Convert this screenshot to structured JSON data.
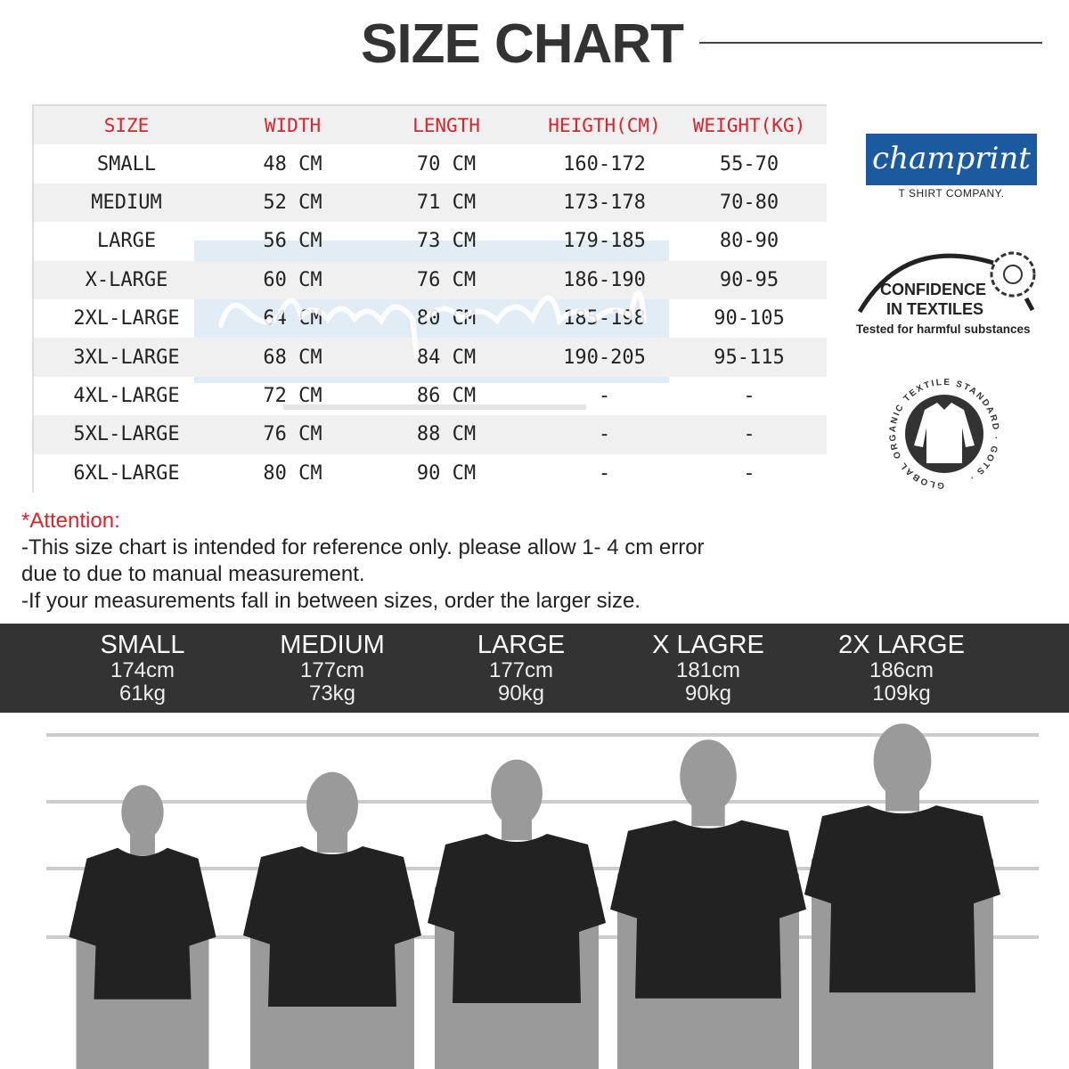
{
  "title": "SIZE CHART",
  "table": {
    "headers": [
      "SIZE",
      "WIDTH",
      "LENGTH",
      "HEIGTH(CM)",
      "WEIGHT(KG)"
    ],
    "rows": [
      [
        "SMALL",
        "48 CM",
        "70 CM",
        "160-172",
        "55-70"
      ],
      [
        "MEDIUM",
        "52 CM",
        "71 CM",
        "173-178",
        "70-80"
      ],
      [
        "LARGE",
        "56 CM",
        "73 CM",
        "179-185",
        "80-90"
      ],
      [
        "X-LARGE",
        "60 CM",
        "76 CM",
        "186-190",
        "90-95"
      ],
      [
        "2XL-LARGE",
        "64 CM",
        "80 CM",
        "185-198",
        "90-105"
      ],
      [
        "3XL-LARGE",
        "68 CM",
        "84 CM",
        "190-205",
        "95-115"
      ],
      [
        "4XL-LARGE",
        "72 CM",
        "86 CM",
        "-",
        "-"
      ],
      [
        "5XL-LARGE",
        "76 CM",
        "88 CM",
        "-",
        "-"
      ],
      [
        "6XL-LARGE",
        "80 CM",
        "90 CM",
        "-",
        "-"
      ]
    ]
  },
  "watermark": {
    "script": "champrint",
    "sub": "T SHIRT COMPANY."
  },
  "brand": {
    "logo": "champrint",
    "sub": "T SHIRT COMPANY.",
    "color": "#1c5aa0"
  },
  "badges": {
    "confidence_1": "CONFIDENCE",
    "confidence_2": "IN TEXTILES",
    "confidence_3": "Tested for harmful substances",
    "gots_ring": "GLOBAL ORGANIC TEXTILE STANDARD · GOTS ·"
  },
  "attention": {
    "heading": "*Attention:",
    "line1": "-This size chart is intended for reference only. please allow 1- 4 cm error",
    "line2": "due to due to manual measurement.",
    "line3": "-If your measurements fall in between sizes, order the larger size."
  },
  "models": [
    {
      "size": "SMALL",
      "height": "174cm",
      "weight": "61kg"
    },
    {
      "size": "MEDIUM",
      "height": "177cm",
      "weight": "73kg"
    },
    {
      "size": "LARGE",
      "height": "177cm",
      "weight": "90kg"
    },
    {
      "size": "X LAGRE",
      "height": "181cm",
      "weight": "90kg"
    },
    {
      "size": "2X LARGE",
      "height": "186cm",
      "weight": "109kg"
    }
  ],
  "colors": {
    "header_text": "#e0202a",
    "band": "#333333",
    "shirt": "#222222",
    "silhouette": "#9a9a9a"
  }
}
